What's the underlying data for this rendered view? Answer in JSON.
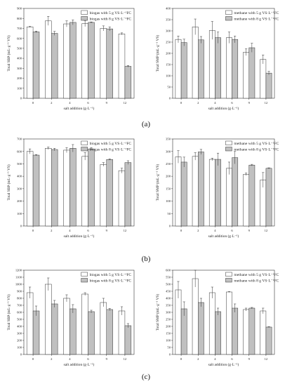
{
  "colors": {
    "series_a_fill": "#ffffff",
    "series_b_fill": "#c0c0c0",
    "stroke": "#333333",
    "error_bar": "#333333"
  },
  "panel_labels": [
    "(a)",
    "(b)",
    "(c)"
  ],
  "chart_data": [
    {
      "type": "bar",
      "panel": "(a)",
      "side": "left",
      "categories": [
        "0",
        "2",
        "4",
        "6",
        "9",
        "12"
      ],
      "series": [
        {
          "name": "biogas with 5 g VS·L⁻¹FC",
          "values": [
            715,
            775,
            745,
            748,
            700,
            645
          ],
          "errors": [
            5,
            45,
            30,
            30,
            25,
            10
          ]
        },
        {
          "name": "biogas with 8 g VS·L⁻¹FC",
          "values": [
            665,
            650,
            760,
            760,
            695,
            320
          ],
          "errors": [
            8,
            20,
            25,
            5,
            20,
            8
          ]
        }
      ],
      "ylim": [
        0,
        900
      ],
      "yticks": [
        0,
        100,
        200,
        300,
        400,
        500,
        600,
        700,
        800,
        900
      ],
      "ylabel": "Total SBP (mL·g⁻¹ VS)",
      "xlabel": "salt addition (g·L⁻¹)",
      "legend": "top-right",
      "grid": false
    },
    {
      "type": "bar",
      "panel": "(a)",
      "side": "right",
      "categories": [
        "0",
        "2",
        "4",
        "6",
        "9",
        "12"
      ],
      "series": [
        {
          "name": "methane with 5 g VS·L⁻¹FC",
          "values": [
            262,
            318,
            302,
            270,
            205,
            173
          ],
          "errors": [
            15,
            35,
            40,
            25,
            15,
            20
          ]
        },
        {
          "name": "methane with 8 g VS·L⁻¹FC",
          "values": [
            248,
            260,
            270,
            262,
            225,
            112
          ],
          "errors": [
            15,
            15,
            25,
            15,
            20,
            8
          ]
        }
      ],
      "ylim": [
        0,
        400
      ],
      "yticks": [
        0,
        50,
        100,
        150,
        200,
        250,
        300,
        350,
        400
      ],
      "ylabel": "Total SMP (mL·g⁻¹ VS)",
      "xlabel": "salt addition (g·L⁻¹)",
      "legend": "top-right",
      "grid": false
    },
    {
      "type": "bar",
      "panel": "(b)",
      "side": "left",
      "categories": [
        "0",
        "2",
        "4",
        "6",
        "9",
        "12"
      ],
      "series": [
        {
          "name": "biogas with 5 g VS·L⁻¹FC",
          "values": [
            600,
            625,
            610,
            560,
            495,
            445
          ],
          "errors": [
            20,
            10,
            20,
            30,
            15,
            20
          ]
        },
        {
          "name": "biogas with 8 g VS·L⁻¹FC",
          "values": [
            570,
            615,
            625,
            620,
            535,
            510
          ],
          "errors": [
            5,
            10,
            30,
            10,
            5,
            15
          ]
        }
      ],
      "ylim": [
        0,
        700
      ],
      "yticks": [
        0,
        100,
        200,
        300,
        400,
        500,
        600,
        700
      ],
      "ylabel": "Total SBP (mL·g⁻¹ VS)",
      "xlabel": "salt addition (g·L⁻¹)",
      "legend": "top-right",
      "grid": false
    },
    {
      "type": "bar",
      "panel": "(b)",
      "side": "right",
      "categories": [
        "0",
        "2",
        "4",
        "6",
        "9",
        "12"
      ],
      "series": [
        {
          "name": "methane with 5 g VS·L⁻¹FC",
          "values": [
            278,
            280,
            268,
            232,
            208,
            185
          ],
          "errors": [
            25,
            15,
            5,
            25,
            5,
            30
          ]
        },
        {
          "name": "methane with 8 g VS·L⁻¹FC",
          "values": [
            257,
            298,
            268,
            275,
            245,
            232
          ],
          "errors": [
            20,
            10,
            25,
            25,
            3,
            2
          ]
        }
      ],
      "ylim": [
        0,
        350
      ],
      "yticks": [
        0,
        50,
        100,
        150,
        200,
        250,
        300,
        350
      ],
      "ylabel": "Total SMP (mL·g⁻¹ VS)",
      "xlabel": "salt addition (g·L⁻¹)",
      "legend": "top-right",
      "grid": false
    },
    {
      "type": "bar",
      "panel": "(c)",
      "side": "left",
      "categories": [
        "0",
        "2",
        "4",
        "6",
        "9",
        "12"
      ],
      "series": [
        {
          "name": "biogas with 5 g VS·L⁻¹FC",
          "values": [
            880,
            1000,
            800,
            860,
            740,
            620
          ],
          "errors": [
            80,
            90,
            50,
            20,
            60,
            60
          ]
        },
        {
          "name": "biogas with 8 g VS·L⁻¹FC",
          "values": [
            620,
            720,
            650,
            610,
            640,
            410
          ],
          "errors": [
            70,
            50,
            60,
            20,
            15,
            30
          ]
        }
      ],
      "ylim": [
        0,
        1200
      ],
      "yticks": [
        0,
        100,
        200,
        300,
        400,
        500,
        600,
        700,
        800,
        900,
        1000,
        1100,
        1200
      ],
      "ylabel": "Total SBP (mL·g⁻¹ VS)",
      "xlabel": "salt addition (g·L⁻¹)",
      "legend": "top-right",
      "grid": false
    },
    {
      "type": "bar",
      "panel": "(c)",
      "side": "right",
      "categories": [
        "0",
        "2",
        "4",
        "6",
        "9",
        "12"
      ],
      "series": [
        {
          "name": "methane with 5 g VS·L⁻¹FC",
          "values": [
            460,
            540,
            440,
            445,
            320,
            310
          ],
          "errors": [
            60,
            60,
            40,
            3,
            10,
            20
          ]
        },
        {
          "name": "methane with 8 g VS·L⁻¹FC",
          "values": [
            325,
            370,
            305,
            330,
            330,
            195
          ],
          "errors": [
            50,
            30,
            25,
            30,
            5,
            3
          ]
        }
      ],
      "ylim": [
        0,
        600
      ],
      "yticks": [
        0,
        50,
        100,
        150,
        200,
        250,
        300,
        350,
        400,
        450,
        500,
        550,
        600
      ],
      "ylabel": "Total SMP (mL·g⁻¹ VS)",
      "xlabel": "salt addition (g·L⁻¹)",
      "legend": "top-right",
      "grid": false
    }
  ]
}
